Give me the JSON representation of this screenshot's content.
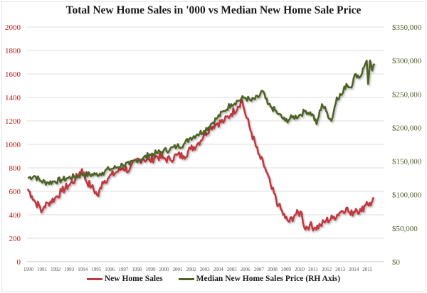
{
  "chart_data": {
    "type": "line",
    "title": "Total New Home Sales in '000 vs Median New Home Sale Price",
    "xlabel": "",
    "ylabel": "",
    "xlim": [
      1990,
      2015.6
    ],
    "ylim_left": [
      0,
      2000
    ],
    "ylim_right": [
      0,
      350000
    ],
    "grid": true,
    "legend_position": "bottom",
    "x_tick_labels": [
      "1990",
      "1991",
      "1992",
      "1993",
      "1994",
      "1995",
      "1996",
      "1997",
      "1998",
      "1999",
      "2000",
      "2001",
      "2002",
      "2003",
      "2004",
      "2005",
      "2006",
      "2007",
      "2008",
      "2009",
      "2010",
      "2011",
      "2012",
      "2013",
      "2014",
      "2015"
    ],
    "left_tick_labels": [
      "0",
      "200",
      "400",
      "600",
      "800",
      "1000",
      "1200",
      "1400",
      "1600",
      "1800",
      "2000"
    ],
    "left_tick_values": [
      0,
      200,
      400,
      600,
      800,
      1000,
      1200,
      1400,
      1600,
      1800,
      2000
    ],
    "right_tick_labels": [
      "$0",
      "$50,000",
      "$100,000",
      "$150,000",
      "$200,000",
      "$250,000",
      "$300,000",
      "$350,000"
    ],
    "right_tick_values": [
      0,
      50000,
      100000,
      150000,
      200000,
      250000,
      300000,
      350000
    ],
    "series": [
      {
        "name": "New Home Sales",
        "axis": "left",
        "color": "#c0393f",
        "x": [
          1990.0,
          1990.3,
          1990.6,
          1990.9,
          1991.0,
          1991.2,
          1991.5,
          1992.0,
          1992.5,
          1993.0,
          1993.5,
          1994.0,
          1994.3,
          1994.7,
          1995.2,
          1995.5,
          1996.0,
          1996.5,
          1997.0,
          1997.5,
          1998.0,
          1998.5,
          1999.0,
          1999.5,
          2000.0,
          2000.5,
          2001.0,
          2001.5,
          2002.0,
          2002.5,
          2003.0,
          2003.5,
          2004.0,
          2004.5,
          2005.0,
          2005.5,
          2005.8,
          2006.0,
          2006.5,
          2007.0,
          2007.5,
          2008.0,
          2008.5,
          2009.0,
          2009.3,
          2009.7,
          2010.2,
          2010.4,
          2010.8,
          2011.2,
          2011.6,
          2012.0,
          2012.5,
          2013.0,
          2013.5,
          2013.8,
          2014.2,
          2014.6,
          2015.0,
          2015.3,
          2015.5
        ],
        "values": [
          620,
          560,
          500,
          470,
          420,
          470,
          500,
          540,
          600,
          650,
          700,
          790,
          690,
          640,
          560,
          680,
          720,
          760,
          800,
          780,
          860,
          880,
          860,
          900,
          880,
          870,
          910,
          900,
          960,
          1000,
          1080,
          1150,
          1180,
          1200,
          1260,
          1320,
          1380,
          1280,
          1100,
          920,
          800,
          620,
          480,
          370,
          340,
          400,
          420,
          290,
          310,
          290,
          310,
          350,
          370,
          420,
          460,
          400,
          450,
          430,
          510,
          480,
          550
        ]
      },
      {
        "name": "Median New Home Sales Price (RH Axis)",
        "axis": "right",
        "color": "#4f6228",
        "x": [
          1990.0,
          1990.5,
          1991.0,
          1991.5,
          1992.0,
          1992.5,
          1993.0,
          1993.5,
          1994.0,
          1995.0,
          1995.5,
          1996.0,
          1996.5,
          1997.0,
          1997.5,
          1998.0,
          1998.5,
          1999.0,
          1999.5,
          2000.0,
          2000.5,
          2001.0,
          2001.5,
          2002.0,
          2002.5,
          2003.0,
          2003.5,
          2004.0,
          2004.5,
          2005.0,
          2005.5,
          2006.0,
          2006.5,
          2007.0,
          2007.3,
          2007.7,
          2008.0,
          2008.5,
          2009.0,
          2009.5,
          2010.0,
          2010.5,
          2011.0,
          2011.3,
          2011.7,
          2012.0,
          2012.4,
          2012.8,
          2013.2,
          2013.5,
          2013.8,
          2014.2,
          2014.5,
          2014.8,
          2015.0,
          2015.1,
          2015.25,
          2015.4,
          2015.6
        ],
        "values": [
          125000,
          128000,
          120000,
          118000,
          120000,
          122000,
          125000,
          127000,
          130000,
          130000,
          133000,
          138000,
          140000,
          145000,
          145000,
          152000,
          154000,
          160000,
          162000,
          165000,
          168000,
          172000,
          175000,
          185000,
          190000,
          195000,
          205000,
          215000,
          225000,
          235000,
          240000,
          245000,
          240000,
          245000,
          255000,
          235000,
          230000,
          220000,
          210000,
          215000,
          218000,
          225000,
          220000,
          205000,
          235000,
          225000,
          210000,
          245000,
          250000,
          265000,
          260000,
          280000,
          275000,
          290000,
          300000,
          265000,
          300000,
          285000,
          295000
        ]
      }
    ]
  }
}
